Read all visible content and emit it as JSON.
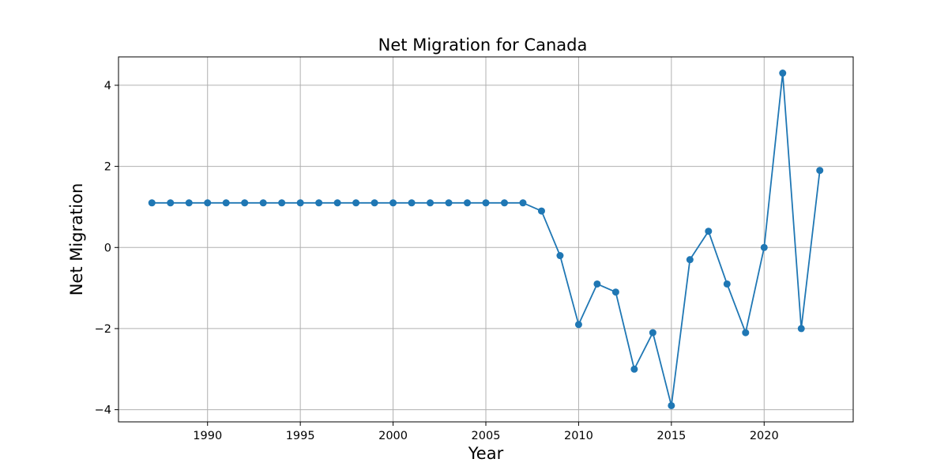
{
  "chart_data": {
    "type": "line",
    "title": "Net Migration for Canada",
    "xlabel": "Year",
    "ylabel": "Net Migration",
    "xlim": [
      1985.2,
      2024.8
    ],
    "ylim": [
      -4.3,
      4.7
    ],
    "xticks": [
      1990,
      1995,
      2000,
      2005,
      2010,
      2015,
      2020
    ],
    "yticks": [
      -4,
      -2,
      0,
      2,
      4
    ],
    "ytick_labels": [
      "−4",
      "−2",
      "0",
      "2",
      "4"
    ],
    "grid": true,
    "marker": "circle",
    "color": "#1f77b4",
    "x": [
      1987,
      1988,
      1989,
      1990,
      1991,
      1992,
      1993,
      1994,
      1995,
      1996,
      1997,
      1998,
      1999,
      2000,
      2001,
      2002,
      2003,
      2004,
      2005,
      2006,
      2007,
      2008,
      2009,
      2010,
      2011,
      2012,
      2013,
      2014,
      2015,
      2016,
      2017,
      2018,
      2019,
      2020,
      2021,
      2022,
      2023
    ],
    "y": [
      1.1,
      1.1,
      1.1,
      1.1,
      1.1,
      1.1,
      1.1,
      1.1,
      1.1,
      1.1,
      1.1,
      1.1,
      1.1,
      1.1,
      1.1,
      1.1,
      1.1,
      1.1,
      1.1,
      1.1,
      1.1,
      0.9,
      -0.2,
      -1.9,
      -0.9,
      -1.1,
      -3.0,
      -2.1,
      -3.9,
      -0.3,
      0.4,
      -0.9,
      -2.1,
      0.0,
      4.3,
      -2.0,
      1.9
    ]
  }
}
